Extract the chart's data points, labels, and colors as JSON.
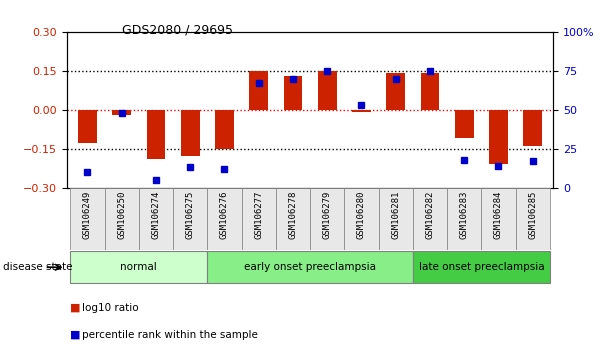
{
  "title": "GDS2080 / 29695",
  "samples": [
    "GSM106249",
    "GSM106250",
    "GSM106274",
    "GSM106275",
    "GSM106276",
    "GSM106277",
    "GSM106278",
    "GSM106279",
    "GSM106280",
    "GSM106281",
    "GSM106282",
    "GSM106283",
    "GSM106284",
    "GSM106285"
  ],
  "log10_ratio": [
    -0.13,
    -0.02,
    -0.19,
    -0.18,
    -0.15,
    0.15,
    0.13,
    0.15,
    -0.01,
    0.14,
    0.14,
    -0.11,
    -0.21,
    -0.14
  ],
  "percentile_rank": [
    10,
    48,
    5,
    13,
    12,
    67,
    70,
    75,
    53,
    70,
    75,
    18,
    14,
    17
  ],
  "bar_color": "#cc2200",
  "dot_color": "#0000cc",
  "ylim_left": [
    -0.3,
    0.3
  ],
  "ylim_right": [
    0,
    100
  ],
  "yticks_left": [
    -0.3,
    -0.15,
    0,
    0.15,
    0.3
  ],
  "yticks_right": [
    0,
    25,
    50,
    75,
    100
  ],
  "groups": [
    {
      "label": "normal",
      "start": 0,
      "end": 3,
      "color": "#ccffcc"
    },
    {
      "label": "early onset preeclampsia",
      "start": 4,
      "end": 9,
      "color": "#88ee88"
    },
    {
      "label": "late onset preeclampsia",
      "start": 10,
      "end": 13,
      "color": "#44cc44"
    }
  ],
  "group_label_prefix": "disease state",
  "legend_items": [
    {
      "label": "log10 ratio",
      "color": "#cc2200"
    },
    {
      "label": "percentile rank within the sample",
      "color": "#0000cc"
    }
  ],
  "background_color": "#ffffff",
  "tick_label_color_left": "#cc2200",
  "tick_label_color_right": "#0000cc"
}
